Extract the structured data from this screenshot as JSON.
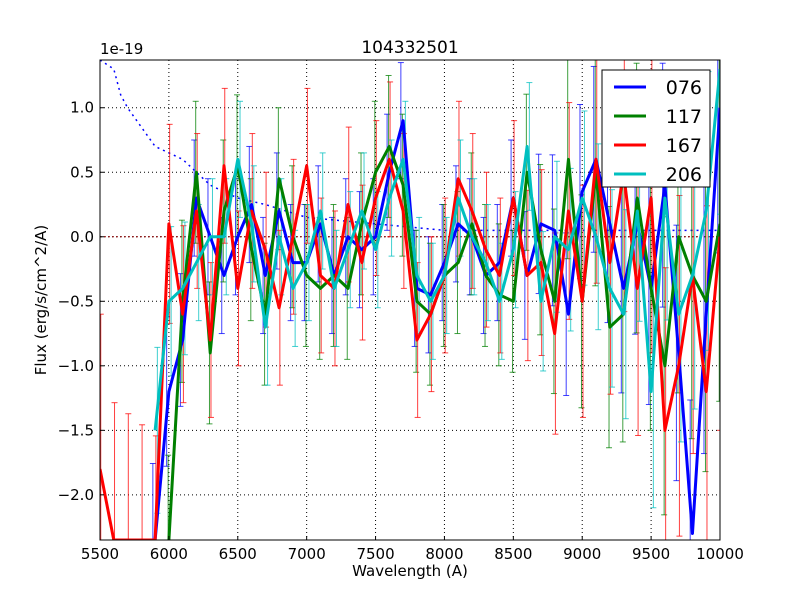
{
  "chart_data": {
    "type": "line",
    "title": "104332501",
    "xlabel": "Wavelength (A)",
    "ylabel": "Flux (erg/s/cm^2/A)",
    "y_offset_label": "1e-19",
    "xlim": [
      5500,
      10000
    ],
    "ylim": [
      -2.35,
      1.37
    ],
    "xticks": [
      "5500",
      "6000",
      "6500",
      "7000",
      "7500",
      "8000",
      "8500",
      "9000",
      "9500",
      "10000"
    ],
    "xtick_values": [
      5500,
      6000,
      6500,
      7000,
      7500,
      8000,
      8500,
      9000,
      9500,
      10000
    ],
    "yticks": [
      "1.0",
      "0.5",
      "0.0",
      "−0.5",
      "−1.0",
      "−1.5",
      "−2.0"
    ],
    "ytick_values": [
      1.0,
      0.5,
      0.0,
      -0.5,
      -1.0,
      -1.5,
      -2.0
    ],
    "grid": true,
    "legend_position": "top-right",
    "x_start": 5500,
    "x_step": 100,
    "series": [
      {
        "name": "076",
        "color": "#0000ff",
        "values": [
          null,
          null,
          null,
          null,
          -2.4,
          -1.2,
          -0.8,
          0.3,
          0.0,
          -0.3,
          0.0,
          0.25,
          -0.3,
          0.2,
          -0.2,
          -0.2,
          0.1,
          -0.3,
          0.0,
          -0.1,
          0.0,
          0.5,
          0.9,
          -0.4,
          -0.45,
          -0.2,
          0.1,
          0.0,
          -0.3,
          -0.2,
          0.3,
          -0.3,
          0.1,
          0.05,
          -0.6,
          0.35,
          0.6,
          0.1,
          -0.4,
          0.1,
          -0.4,
          0.4,
          -0.9,
          -2.3,
          -0.6,
          1.0
        ],
        "yerr": 0.45
      },
      {
        "name": "117",
        "color": "#008000",
        "values": [
          null,
          null,
          null,
          null,
          null,
          -2.4,
          -0.5,
          0.5,
          -0.9,
          0.2,
          0.55,
          -0.1,
          -0.6,
          0.45,
          0.0,
          -0.3,
          -0.4,
          -0.3,
          -0.4,
          0.1,
          0.5,
          0.7,
          0.4,
          -0.5,
          -0.6,
          -0.3,
          -0.2,
          0.1,
          -0.3,
          -0.45,
          -0.5,
          0.5,
          -0.1,
          -0.5,
          0.6,
          -0.5,
          0.5,
          -0.7,
          -0.6,
          0.3,
          -0.4,
          -1.0,
          0.0,
          -0.3,
          -0.5,
          0.1
        ],
        "yerr": 0.55
      },
      {
        "name": "167",
        "color": "#ff0000",
        "values": [
          -1.8,
          -2.4,
          -2.4,
          -2.4,
          -2.4,
          0.1,
          -0.6,
          0.2,
          -0.8,
          0.55,
          -0.4,
          0.2,
          -0.1,
          -0.55,
          0.0,
          0.55,
          -0.3,
          -0.4,
          0.25,
          -0.2,
          0.3,
          0.6,
          0.2,
          -0.8,
          -0.6,
          -0.3,
          0.45,
          0.2,
          -0.1,
          -0.3,
          0.3,
          -0.3,
          -0.2,
          -0.75,
          0.2,
          -0.5,
          0.6,
          -0.2,
          0.5,
          -0.4,
          0.3,
          -1.5,
          -1.0,
          -0.3,
          -1.2,
          0.0
        ],
        "yerr": 0.6
      },
      {
        "name": "206",
        "color": "#00bfbf",
        "values": [
          null,
          null,
          null,
          null,
          -1.5,
          -0.5,
          -0.4,
          -0.2,
          0.0,
          0.0,
          0.6,
          0.1,
          -0.7,
          0.0,
          -0.4,
          -0.2,
          0.2,
          -0.4,
          -0.1,
          0.2,
          -0.1,
          0.3,
          0.6,
          -0.3,
          -0.5,
          -0.3,
          0.3,
          0.0,
          -0.2,
          -0.5,
          -0.1,
          0.7,
          -0.5,
          0.0,
          -0.1,
          0.3,
          0.0,
          -0.4,
          -0.6,
          0.2,
          -1.2,
          0.3,
          -0.6,
          -0.3,
          0.2,
          1.3
        ],
        "yerr": 0.45
      }
    ],
    "reference_curve": {
      "color": "#0000ff",
      "style": "dotted",
      "x": [
        5500,
        5600,
        5650,
        5700,
        5800,
        5900,
        6100,
        6300,
        6500,
        6700,
        7000,
        7500,
        8000,
        9000,
        10000
      ],
      "values": [
        1.7,
        1.3,
        1.1,
        1.0,
        0.85,
        0.7,
        0.6,
        0.4,
        0.3,
        0.25,
        0.15,
        0.1,
        0.05,
        0.05,
        0.05
      ]
    },
    "zero_line": {
      "color": "#8b0000",
      "style": "dotted",
      "value": 0.0
    }
  }
}
